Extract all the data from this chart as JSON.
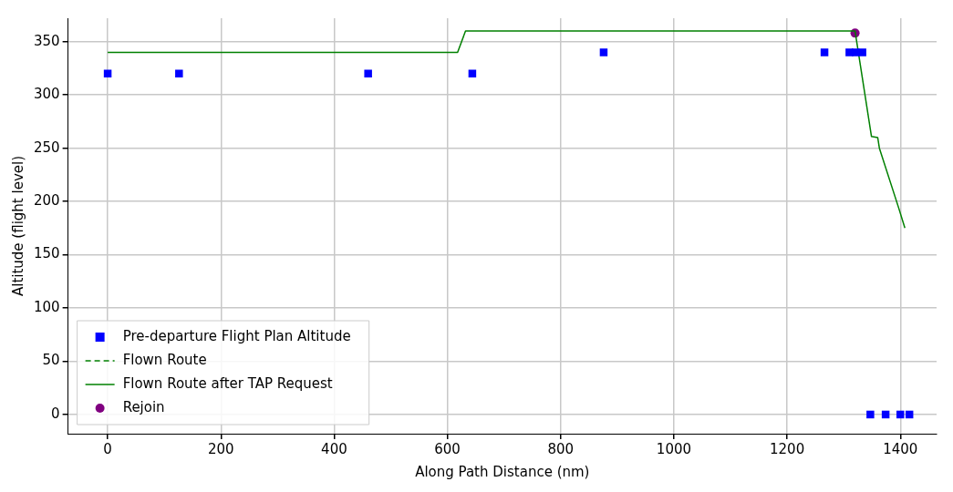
{
  "chart_data": {
    "type": "scatter",
    "xlabel": "Along Path Distance (nm)",
    "ylabel": "Altitude (flight level)",
    "xlim": [
      -70,
      1464
    ],
    "ylim": [
      -18,
      372
    ],
    "xticks": [
      0,
      200,
      400,
      600,
      800,
      1000,
      1200,
      1400
    ],
    "yticks": [
      0,
      50,
      100,
      150,
      200,
      250,
      300,
      350
    ],
    "grid": true,
    "legend": "bottom left",
    "series": [
      {
        "name": "Pre-departure Flight Plan Altitude",
        "type": "scatter",
        "marker": "square",
        "color": "#0000ff",
        "x": [
          0,
          126,
          460,
          644,
          876,
          1266,
          1310,
          1321,
          1333,
          1347,
          1374,
          1400,
          1416
        ],
        "values": [
          320,
          320,
          320,
          320,
          340,
          340,
          340,
          340,
          340,
          0,
          0,
          0,
          0
        ]
      },
      {
        "name": "Flown Route",
        "type": "line",
        "line_style": "dashed",
        "marker": "none",
        "color": "#008000"
      },
      {
        "name": "Flown Route after TAP Request",
        "type": "line",
        "line_style": "solid",
        "marker": "none",
        "color": "#008000",
        "x": [
          0,
          618,
          632,
          1320,
          1349,
          1360,
          1363,
          1397,
          1408
        ],
        "values": [
          340,
          340,
          360,
          360,
          261,
          260,
          250,
          194,
          175
        ]
      },
      {
        "name": "Rejoin",
        "type": "scatter",
        "marker": "circle",
        "color": "#800080",
        "x": [
          1320
        ],
        "values": [
          358
        ]
      }
    ]
  }
}
